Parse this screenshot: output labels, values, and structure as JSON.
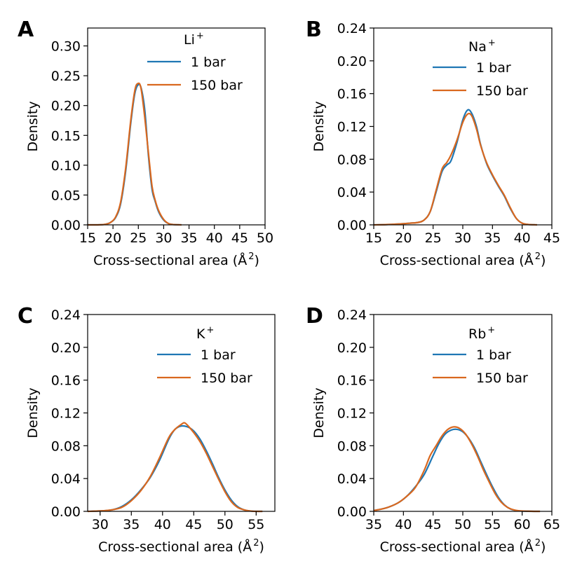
{
  "figure": {
    "colors": {
      "series_1bar": "#1f77b4",
      "series_150bar": "#d9681f",
      "axis": "#000000"
    }
  },
  "chart_data": [
    {
      "panel": "A",
      "type": "line",
      "legend_title": "Li",
      "legend_title_sup": "+",
      "xlabel": "Cross-sectional area (Å",
      "xlabel_sup": "2",
      "xlabel_end": ")",
      "ylabel": "Density",
      "xlim": [
        15,
        50
      ],
      "ylim": [
        0,
        0.33
      ],
      "xticks": [
        15,
        20,
        25,
        30,
        35,
        40,
        45,
        50
      ],
      "yticks": [
        "0.00",
        "0.05",
        "0.10",
        "0.15",
        "0.20",
        "0.25",
        "0.30"
      ],
      "series": [
        {
          "name": "1 bar",
          "x": [
            15,
            17,
            18.5,
            19.5,
            20.5,
            21.5,
            22.5,
            23.5,
            24.3,
            25.0,
            25.6,
            26.3,
            27.0,
            27.7,
            28.3,
            29.0,
            30.0,
            31.0,
            32.0,
            33.5
          ],
          "y": [
            0,
            0,
            0.001,
            0.004,
            0.012,
            0.035,
            0.09,
            0.17,
            0.22,
            0.235,
            0.228,
            0.19,
            0.115,
            0.06,
            0.04,
            0.022,
            0.008,
            0.002,
            0.0005,
            0
          ]
        },
        {
          "name": "150 bar",
          "x": [
            15,
            17,
            18.5,
            19.5,
            20.5,
            21.5,
            22.5,
            23.5,
            24.3,
            24.9,
            25.5,
            26.2,
            27.0,
            27.7,
            28.3,
            29.0,
            30.0,
            31.0,
            32.0,
            33.5
          ],
          "y": [
            0,
            0,
            0.001,
            0.004,
            0.013,
            0.038,
            0.095,
            0.175,
            0.225,
            0.237,
            0.23,
            0.185,
            0.12,
            0.065,
            0.042,
            0.024,
            0.009,
            0.002,
            0.0005,
            0
          ]
        }
      ]
    },
    {
      "panel": "B",
      "type": "line",
      "legend_title": "Na",
      "legend_title_sup": "+",
      "xlabel": "Cross-sectional area (Å",
      "xlabel_sup": "2",
      "xlabel_end": ")",
      "ylabel": "Density",
      "xlim": [
        15,
        45
      ],
      "ylim": [
        0,
        0.24
      ],
      "xticks": [
        15,
        20,
        25,
        30,
        35,
        40,
        45
      ],
      "yticks": [
        "0.00",
        "0.04",
        "0.08",
        "0.12",
        "0.16",
        "0.20",
        "0.24"
      ],
      "series": [
        {
          "name": "1 bar",
          "x": [
            15,
            17,
            19,
            21,
            22.5,
            23.5,
            24.5,
            25.5,
            26.5,
            27.3,
            28.0,
            29.0,
            30.0,
            30.8,
            31.5,
            32.3,
            33.0,
            34.0,
            35.0,
            36.0,
            37.0,
            38.0,
            39.0,
            40.0,
            41.0,
            42.5
          ],
          "y": [
            0,
            0.0003,
            0.001,
            0.002,
            0.003,
            0.006,
            0.016,
            0.04,
            0.065,
            0.073,
            0.078,
            0.1,
            0.128,
            0.14,
            0.136,
            0.12,
            0.098,
            0.075,
            0.06,
            0.047,
            0.035,
            0.02,
            0.008,
            0.002,
            0.0005,
            0
          ]
        },
        {
          "name": "150 bar",
          "x": [
            15,
            17,
            19,
            21,
            22.5,
            23.5,
            24.5,
            25.5,
            26.5,
            27.3,
            28.0,
            29.0,
            30.0,
            30.8,
            31.5,
            32.3,
            33.0,
            34.0,
            35.0,
            36.0,
            37.0,
            38.0,
            39.0,
            40.0,
            41.0,
            42.5
          ],
          "y": [
            0,
            0.0003,
            0.001,
            0.002,
            0.003,
            0.006,
            0.016,
            0.042,
            0.068,
            0.076,
            0.085,
            0.103,
            0.125,
            0.135,
            0.133,
            0.117,
            0.097,
            0.076,
            0.061,
            0.048,
            0.036,
            0.021,
            0.008,
            0.002,
            0.0005,
            0
          ]
        }
      ]
    },
    {
      "panel": "C",
      "type": "line",
      "legend_title": "K",
      "legend_title_sup": "+",
      "xlabel": "Cross-sectional area (Å",
      "xlabel_sup": "2",
      "xlabel_end": ")",
      "ylabel": "Density",
      "xlim": [
        28,
        58
      ],
      "ylim": [
        0,
        0.24
      ],
      "xticks": [
        30,
        35,
        40,
        45,
        50,
        55
      ],
      "yticks": [
        "0.00",
        "0.04",
        "0.08",
        "0.12",
        "0.16",
        "0.20",
        "0.24"
      ],
      "series": [
        {
          "name": "1 bar",
          "x": [
            28,
            30,
            32,
            33.5,
            35,
            36.5,
            38,
            39.5,
            41,
            42,
            43,
            44,
            45,
            46,
            47,
            48,
            49,
            50,
            51,
            52,
            53,
            54,
            55,
            56
          ],
          "y": [
            0,
            0.0005,
            0.002,
            0.006,
            0.014,
            0.026,
            0.041,
            0.062,
            0.088,
            0.1,
            0.104,
            0.103,
            0.098,
            0.088,
            0.074,
            0.058,
            0.041,
            0.026,
            0.014,
            0.006,
            0.002,
            0.0005,
            0,
            0
          ]
        },
        {
          "name": "150 bar",
          "x": [
            28,
            30,
            32,
            33.5,
            35,
            36.5,
            38,
            39.5,
            41,
            42,
            43,
            43.5,
            44,
            45,
            46,
            47,
            48,
            49,
            50,
            51,
            52,
            53,
            54,
            55,
            56
          ],
          "y": [
            0,
            0.0005,
            0.002,
            0.005,
            0.013,
            0.025,
            0.042,
            0.065,
            0.09,
            0.1,
            0.106,
            0.108,
            0.105,
            0.096,
            0.085,
            0.071,
            0.055,
            0.039,
            0.024,
            0.012,
            0.005,
            0.002,
            0.0005,
            0,
            0
          ]
        }
      ]
    },
    {
      "panel": "D",
      "type": "line",
      "legend_title": "Rb",
      "legend_title_sup": "+",
      "xlabel": "Cross-sectional area (Å",
      "xlabel_sup": "2",
      "xlabel_end": ")",
      "ylabel": "Density",
      "xlim": [
        35,
        65
      ],
      "ylim": [
        0,
        0.24
      ],
      "xticks": [
        35,
        40,
        45,
        50,
        55,
        60,
        65
      ],
      "yticks": [
        "0.00",
        "0.04",
        "0.08",
        "0.12",
        "0.16",
        "0.20",
        "0.24"
      ],
      "series": [
        {
          "name": "1 bar",
          "x": [
            35,
            37,
            39,
            40.5,
            42,
            43.5,
            45,
            46,
            47,
            48,
            49,
            50,
            51,
            52,
            53,
            54,
            55,
            56,
            57,
            58,
            59,
            60,
            61,
            62,
            63
          ],
          "y": [
            0.001,
            0.004,
            0.01,
            0.018,
            0.03,
            0.045,
            0.068,
            0.083,
            0.094,
            0.099,
            0.1,
            0.097,
            0.089,
            0.077,
            0.061,
            0.045,
            0.03,
            0.017,
            0.008,
            0.003,
            0.001,
            0.0003,
            0.0001,
            0,
            0
          ]
        },
        {
          "name": "150 bar",
          "x": [
            35,
            37,
            39,
            40.5,
            42,
            43.5,
            44.5,
            45.5,
            46.5,
            47.5,
            48.5,
            49.5,
            50.5,
            51.5,
            52.5,
            53.5,
            54.5,
            55.5,
            56.5,
            57.5,
            58.5,
            59.5,
            61,
            62,
            63
          ],
          "y": [
            0.001,
            0.004,
            0.01,
            0.018,
            0.029,
            0.05,
            0.068,
            0.08,
            0.092,
            0.1,
            0.103,
            0.101,
            0.094,
            0.082,
            0.067,
            0.05,
            0.035,
            0.021,
            0.011,
            0.005,
            0.002,
            0.0007,
            0.0002,
            0,
            0
          ]
        }
      ]
    }
  ]
}
